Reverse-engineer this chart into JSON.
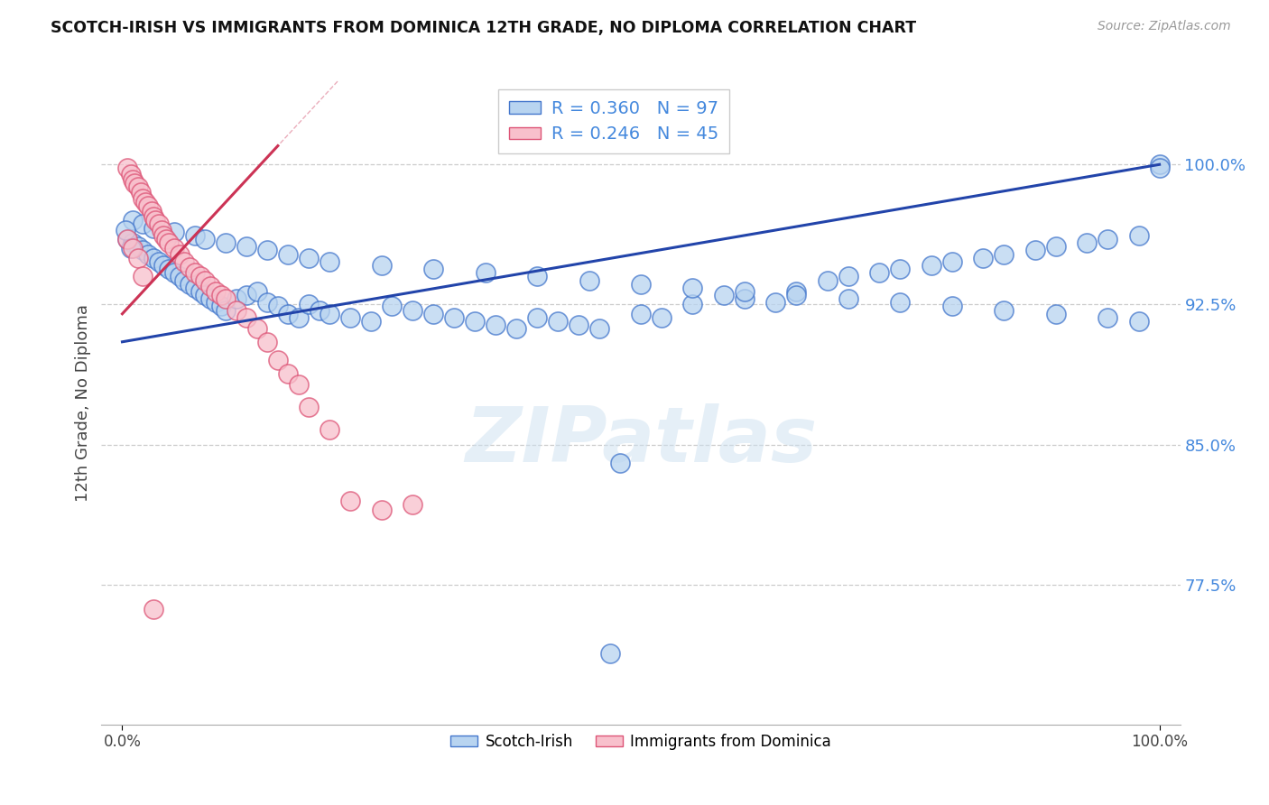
{
  "title": "SCOTCH-IRISH VS IMMIGRANTS FROM DOMINICA 12TH GRADE, NO DIPLOMA CORRELATION CHART",
  "source": "Source: ZipAtlas.com",
  "ylabel": "12th Grade, No Diploma",
  "blue_label": "Scotch-Irish",
  "pink_label": "Immigrants from Dominica",
  "blue_R": 0.36,
  "blue_N": 97,
  "pink_R": 0.246,
  "pink_N": 45,
  "xlim": [
    -0.02,
    1.02
  ],
  "ylim": [
    0.7,
    1.045
  ],
  "yticks": [
    0.775,
    0.85,
    0.925,
    1.0
  ],
  "ytick_labels": [
    "77.5%",
    "85.0%",
    "92.5%",
    "100.0%"
  ],
  "xticks": [
    0.0,
    1.0
  ],
  "xtick_labels": [
    "0.0%",
    "100.0%"
  ],
  "blue_face_color": "#b8d4f0",
  "blue_edge_color": "#4477cc",
  "blue_line_color": "#2244aa",
  "pink_face_color": "#f8c0cc",
  "pink_edge_color": "#dd5577",
  "pink_line_color": "#cc3355",
  "grid_color": "#cccccc",
  "watermark": "ZIPatlas",
  "ytick_color": "#4488dd",
  "blue_x": [
    0.005,
    0.01,
    0.015,
    0.02,
    0.025,
    0.03,
    0.035,
    0.04,
    0.045,
    0.05,
    0.055,
    0.06,
    0.065,
    0.07,
    0.075,
    0.08,
    0.085,
    0.09,
    0.095,
    0.1,
    0.11,
    0.12,
    0.13,
    0.14,
    0.15,
    0.16,
    0.17,
    0.18,
    0.19,
    0.2,
    0.22,
    0.24,
    0.26,
    0.28,
    0.3,
    0.32,
    0.34,
    0.36,
    0.38,
    0.4,
    0.42,
    0.44,
    0.46,
    0.5,
    0.52,
    0.55,
    0.58,
    0.6,
    0.63,
    0.65,
    0.68,
    0.7,
    0.73,
    0.75,
    0.78,
    0.8,
    0.83,
    0.85,
    0.88,
    0.9,
    0.93,
    0.95,
    0.98,
    1.0,
    0.01,
    0.02,
    0.03,
    0.05,
    0.07,
    0.08,
    0.1,
    0.12,
    0.14,
    0.16,
    0.18,
    0.2,
    0.25,
    0.3,
    0.35,
    0.4,
    0.45,
    0.5,
    0.55,
    0.6,
    0.65,
    0.7,
    0.75,
    0.8,
    0.85,
    0.9,
    0.95,
    0.98,
    1.0,
    0.48,
    0.47,
    0.003,
    0.008
  ],
  "blue_y": [
    0.96,
    0.958,
    0.956,
    0.954,
    0.952,
    0.95,
    0.948,
    0.946,
    0.944,
    0.942,
    0.94,
    0.938,
    0.936,
    0.934,
    0.932,
    0.93,
    0.928,
    0.926,
    0.924,
    0.922,
    0.928,
    0.93,
    0.932,
    0.926,
    0.924,
    0.92,
    0.918,
    0.925,
    0.922,
    0.92,
    0.918,
    0.916,
    0.924,
    0.922,
    0.92,
    0.918,
    0.916,
    0.914,
    0.912,
    0.918,
    0.916,
    0.914,
    0.912,
    0.92,
    0.918,
    0.925,
    0.93,
    0.928,
    0.926,
    0.932,
    0.938,
    0.94,
    0.942,
    0.944,
    0.946,
    0.948,
    0.95,
    0.952,
    0.954,
    0.956,
    0.958,
    0.96,
    0.962,
    1.0,
    0.97,
    0.968,
    0.966,
    0.964,
    0.962,
    0.96,
    0.958,
    0.956,
    0.954,
    0.952,
    0.95,
    0.948,
    0.946,
    0.944,
    0.942,
    0.94,
    0.938,
    0.936,
    0.934,
    0.932,
    0.93,
    0.928,
    0.926,
    0.924,
    0.922,
    0.92,
    0.918,
    0.916,
    0.998,
    0.84,
    0.738,
    0.965,
    0.955
  ],
  "pink_x": [
    0.005,
    0.008,
    0.01,
    0.012,
    0.015,
    0.018,
    0.02,
    0.022,
    0.025,
    0.028,
    0.03,
    0.032,
    0.035,
    0.038,
    0.04,
    0.042,
    0.045,
    0.05,
    0.055,
    0.06,
    0.065,
    0.07,
    0.075,
    0.08,
    0.085,
    0.09,
    0.095,
    0.1,
    0.11,
    0.12,
    0.13,
    0.14,
    0.15,
    0.16,
    0.17,
    0.18,
    0.2,
    0.22,
    0.25,
    0.28,
    0.005,
    0.01,
    0.015,
    0.02,
    0.03
  ],
  "pink_y": [
    0.998,
    0.995,
    0.992,
    0.99,
    0.988,
    0.985,
    0.982,
    0.98,
    0.978,
    0.975,
    0.972,
    0.97,
    0.968,
    0.965,
    0.962,
    0.96,
    0.958,
    0.955,
    0.952,
    0.948,
    0.945,
    0.942,
    0.94,
    0.938,
    0.935,
    0.932,
    0.93,
    0.928,
    0.922,
    0.918,
    0.912,
    0.905,
    0.895,
    0.888,
    0.882,
    0.87,
    0.858,
    0.82,
    0.815,
    0.818,
    0.96,
    0.955,
    0.95,
    0.94,
    0.762
  ],
  "blue_line_x0": 0.0,
  "blue_line_x1": 1.0,
  "blue_line_y0": 0.905,
  "blue_line_y1": 1.0,
  "pink_line_x0": 0.0,
  "pink_line_x1": 0.15,
  "pink_line_y0": 0.92,
  "pink_line_y1": 1.01
}
